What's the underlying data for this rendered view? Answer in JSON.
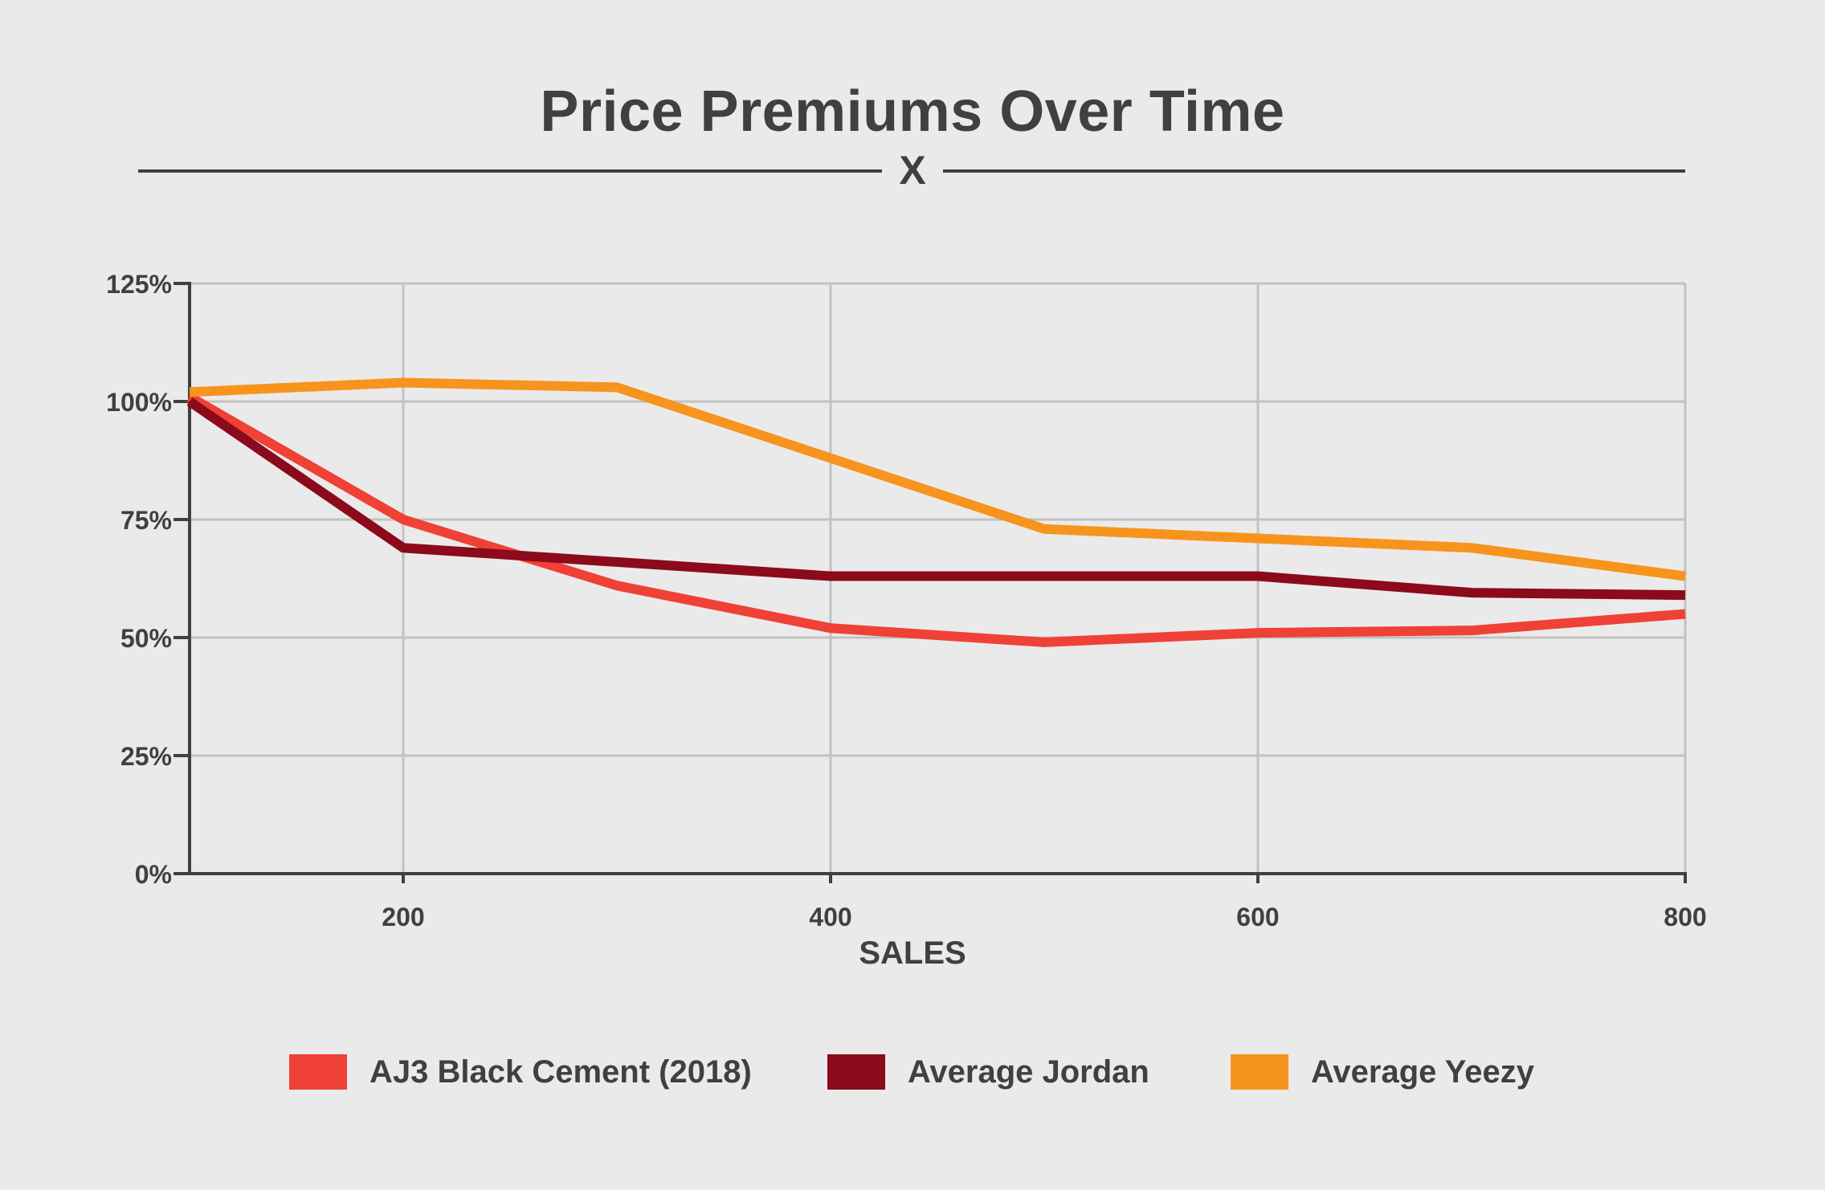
{
  "title": "Price Premiums Over Time",
  "brand_mark": "X",
  "colors": {
    "background": "#ebeaea",
    "text": "#404041",
    "grid": "#c2c2c2",
    "axis": "#404041"
  },
  "chart_data": {
    "type": "line",
    "title": "Price Premiums Over Time",
    "xlabel": "SALES",
    "ylabel": "",
    "xlim": [
      100,
      800
    ],
    "ylim": [
      0,
      125
    ],
    "x_ticks": [
      200,
      400,
      600,
      800
    ],
    "x_tick_labels": [
      "200",
      "400",
      "600",
      "800"
    ],
    "y_ticks": [
      0,
      25,
      50,
      75,
      100,
      125
    ],
    "y_tick_labels": [
      "0%",
      "25%",
      "50%",
      "75%",
      "100%",
      "125%"
    ],
    "grid": true,
    "legend_position": "bottom",
    "series": [
      {
        "name": "AJ3 Black Cement (2018)",
        "color": "#ef4136",
        "x": [
          100,
          200,
          300,
          400,
          500,
          600,
          700,
          800
        ],
        "values": [
          101,
          75,
          61,
          52,
          49,
          51,
          51.5,
          55
        ]
      },
      {
        "name": "Average Jordan",
        "color": "#8b0a1b",
        "x": [
          100,
          200,
          300,
          400,
          500,
          600,
          700,
          800
        ],
        "values": [
          100,
          69,
          66,
          63,
          63,
          63,
          59.5,
          59
        ]
      },
      {
        "name": "Average Yeezy",
        "color": "#f7941d",
        "x": [
          100,
          200,
          300,
          400,
          500,
          600,
          700,
          800
        ],
        "values": [
          102,
          104,
          103,
          88,
          73,
          71,
          69,
          63
        ]
      }
    ]
  }
}
